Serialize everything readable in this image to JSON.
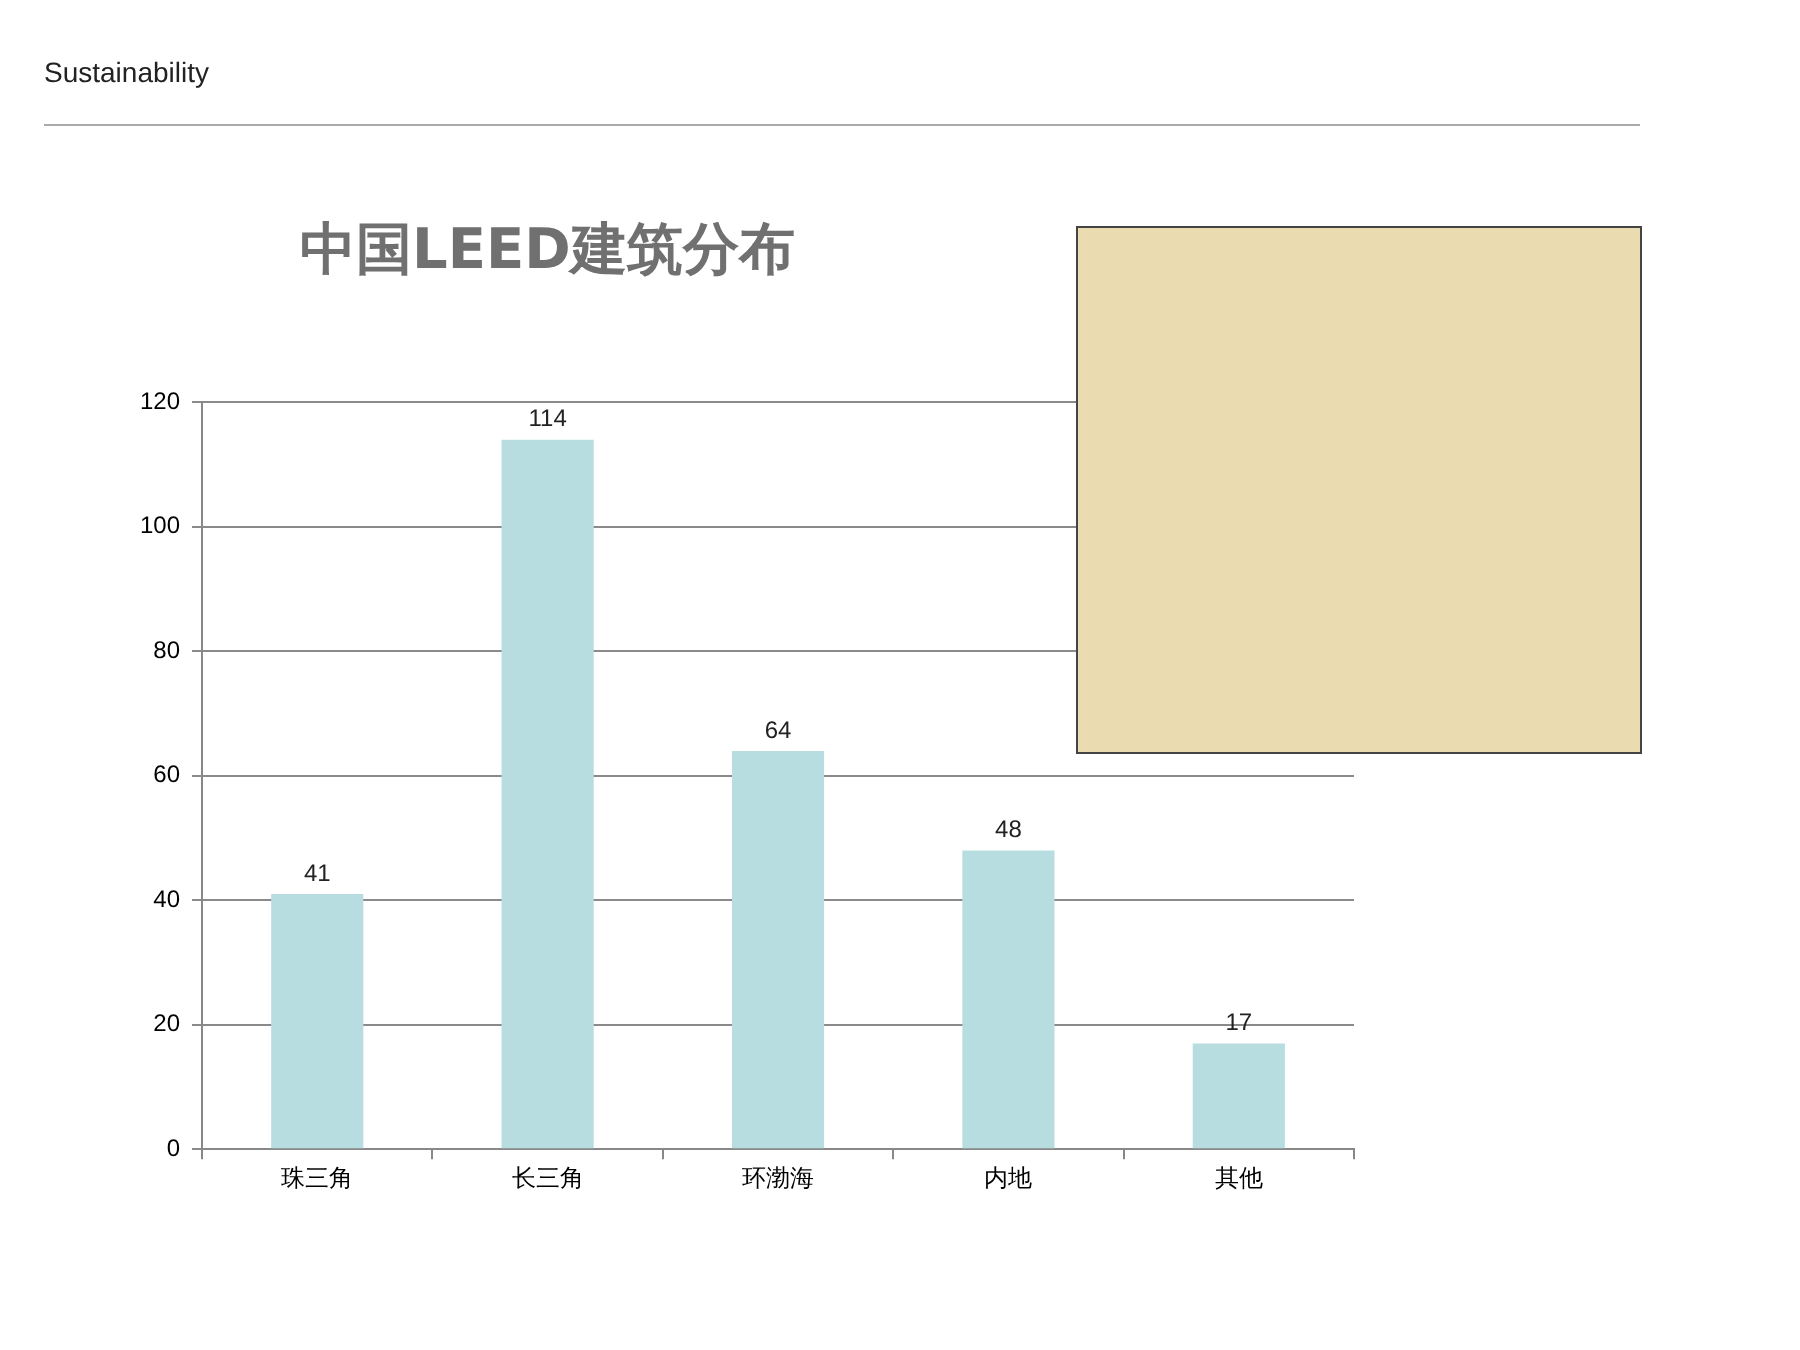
{
  "chart_data": {
    "type": "bar",
    "title": "中国LEED建筑分布",
    "annotations": [
      "Sustainability"
    ],
    "categories": [
      "珠三角",
      "长三角",
      "环渤海",
      "内地",
      "其他"
    ],
    "values": [
      41,
      114,
      64,
      48,
      17
    ],
    "color": "#b7dde1",
    "ylim": [
      0,
      120
    ],
    "yticks": [
      0,
      20,
      40,
      60,
      80,
      100,
      120
    ],
    "grid": "y",
    "data_labels": true
  }
}
